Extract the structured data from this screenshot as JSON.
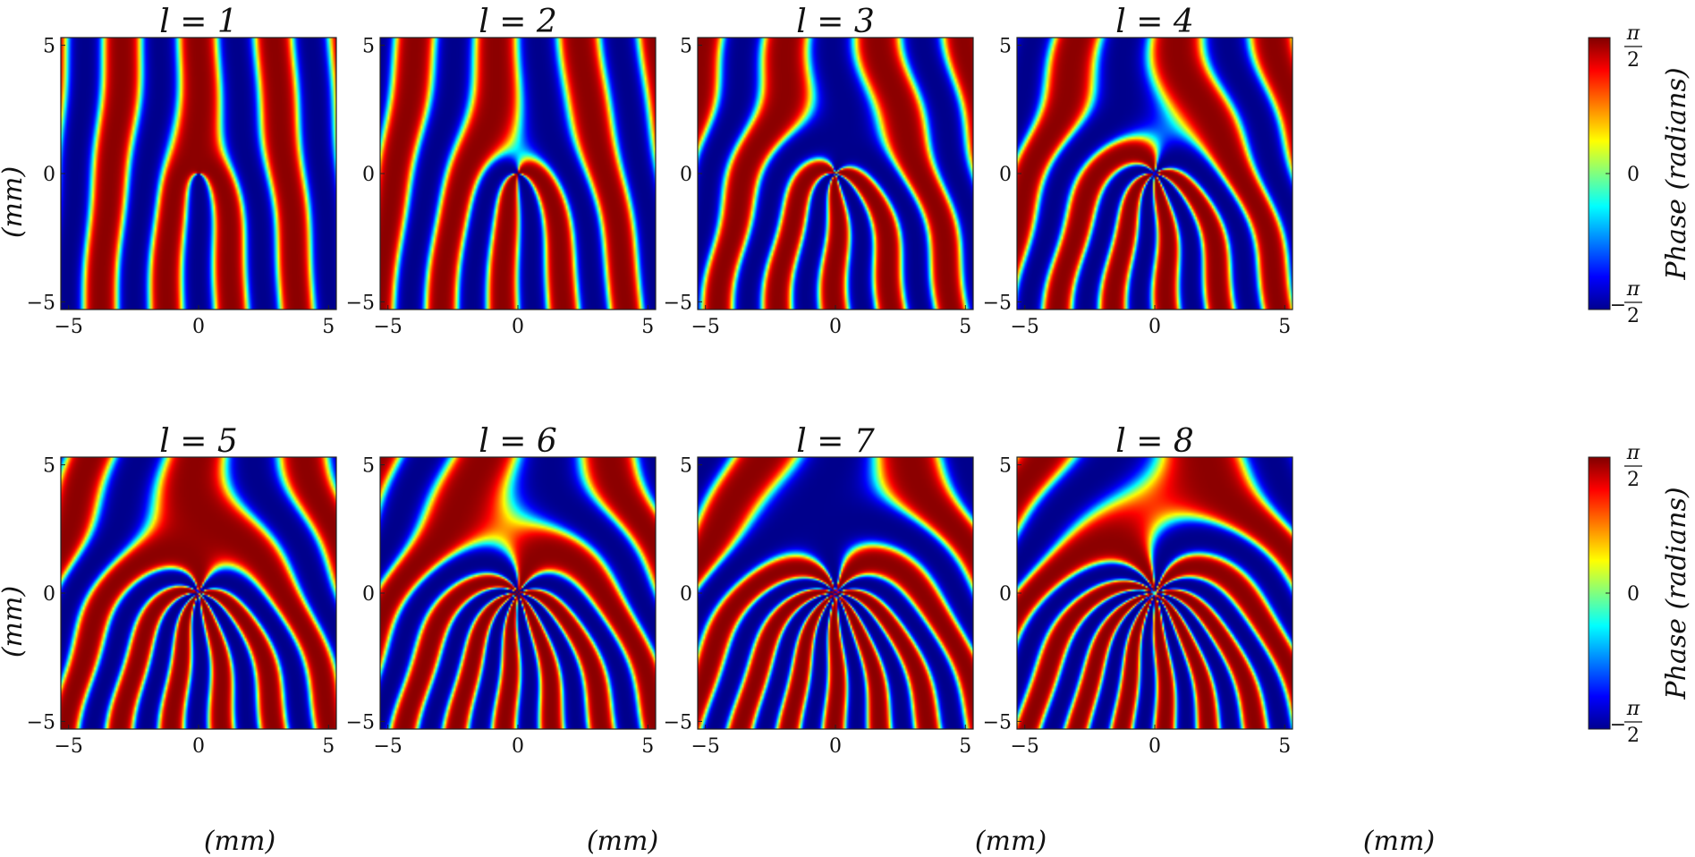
{
  "figure": {
    "panel_titles": [
      "l = 1",
      "l = 2",
      "l = 3",
      "l = 4",
      "l = 5",
      "l = 6",
      "l = 7",
      "l = 8"
    ],
    "xlabel": "(mm)",
    "ylabel": "(mm)",
    "colorbar_label": "Phase (radians)"
  },
  "chart_data": [
    {
      "type": "heatmap",
      "layout_grid": "2 rows x 4 columns",
      "panels": [
        {
          "title": "l = 1",
          "l": 1
        },
        {
          "title": "l = 2",
          "l": 2
        },
        {
          "title": "l = 3",
          "l": 3
        },
        {
          "title": "l = 4",
          "l": 4
        },
        {
          "title": "l = 5",
          "l": 5
        },
        {
          "title": "l = 6",
          "l": 6
        },
        {
          "title": "l = 7",
          "l": 7
        },
        {
          "title": "l = 8",
          "l": 8
        }
      ],
      "xlabel": "(mm)",
      "ylabel": "(mm)",
      "xlim": [
        -5.3,
        5.3
      ],
      "ylim": [
        -5.3,
        5.3
      ],
      "x_ticks": [
        "-5",
        "0",
        "5"
      ],
      "y_ticks": [
        "5",
        "0",
        "-5"
      ],
      "colormap": "jet",
      "colormap_stops": [
        "#00008f",
        "#0000ff",
        "#00ffff",
        "#ffff00",
        "#ff0000",
        "#800000"
      ],
      "colorbar": {
        "label": "Phase (radians)",
        "tick_labels": [
          "π/2",
          "0",
          "−π/2"
        ],
        "range": [
          "−π/2",
          "π/2"
        ]
      }
    }
  ]
}
